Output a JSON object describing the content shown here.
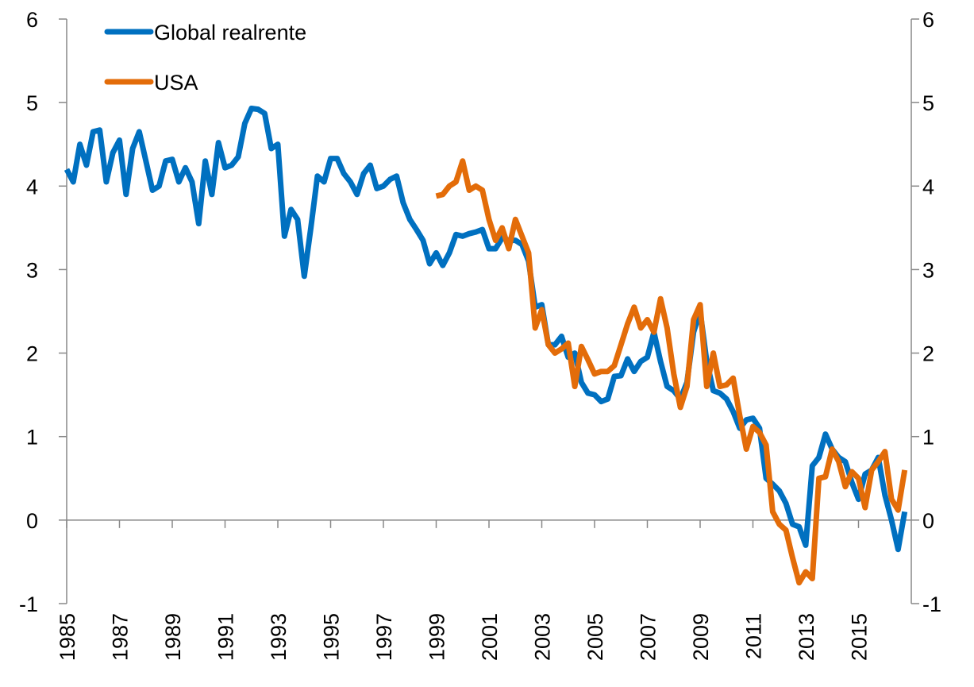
{
  "chart_data": {
    "type": "line",
    "legend": "upper left",
    "ylim": [
      -1,
      6
    ],
    "yticks": [
      -1,
      0,
      1,
      2,
      3,
      4,
      5,
      6
    ],
    "categories": [
      "1985",
      null,
      null,
      null,
      null,
      null,
      null,
      null,
      "1987",
      null,
      null,
      null,
      null,
      null,
      null,
      null,
      "1989",
      null,
      null,
      null,
      null,
      null,
      null,
      null,
      "1991",
      null,
      null,
      null,
      null,
      null,
      null,
      null,
      "1993",
      null,
      null,
      null,
      null,
      null,
      null,
      null,
      "1995",
      null,
      null,
      null,
      null,
      null,
      null,
      null,
      "1997",
      null,
      null,
      null,
      null,
      null,
      null,
      null,
      "1999",
      null,
      null,
      null,
      null,
      null,
      null,
      null,
      "2001",
      null,
      null,
      null,
      null,
      null,
      null,
      null,
      "2003",
      null,
      null,
      null,
      null,
      null,
      null,
      null,
      "2005",
      null,
      null,
      null,
      null,
      null,
      null,
      null,
      "2007",
      null,
      null,
      null,
      null,
      null,
      null,
      null,
      "2009",
      null,
      null,
      null,
      null,
      null,
      null,
      null,
      "2011",
      null,
      null,
      null,
      null,
      null,
      null,
      null,
      "2013",
      null,
      null,
      null,
      null,
      null,
      null,
      null,
      "2015",
      null,
      null,
      null,
      null,
      null,
      null,
      null
    ],
    "series": [
      {
        "name": "Global realrente",
        "color": "#0070c0",
        "values": [
          4.2,
          4.05,
          4.5,
          4.25,
          4.65,
          4.67,
          4.05,
          4.4,
          4.55,
          3.9,
          4.45,
          4.65,
          4.3,
          3.95,
          4.0,
          4.3,
          4.32,
          4.05,
          4.22,
          4.05,
          3.55,
          4.3,
          3.9,
          4.52,
          4.22,
          4.25,
          4.35,
          4.75,
          4.93,
          4.92,
          4.87,
          4.45,
          4.5,
          3.4,
          3.72,
          3.6,
          2.92,
          3.5,
          4.12,
          4.05,
          4.33,
          4.33,
          4.15,
          4.05,
          3.9,
          4.15,
          4.25,
          3.97,
          4.0,
          4.08,
          4.12,
          3.8,
          3.6,
          3.48,
          3.35,
          3.07,
          3.2,
          3.05,
          3.2,
          3.42,
          3.4,
          3.43,
          3.45,
          3.48,
          3.25,
          3.25,
          3.38,
          3.35,
          3.35,
          3.3,
          3.1,
          2.55,
          2.58,
          2.1,
          2.1,
          2.2,
          1.95,
          2.0,
          1.65,
          1.52,
          1.5,
          1.42,
          1.45,
          1.72,
          1.73,
          1.93,
          1.78,
          1.9,
          1.95,
          2.25,
          1.9,
          1.6,
          1.55,
          1.45,
          1.65,
          2.25,
          2.5,
          1.9,
          1.55,
          1.52,
          1.45,
          1.3,
          1.1,
          1.2,
          1.22,
          1.1,
          0.5,
          0.43,
          0.35,
          0.2,
          -0.05,
          -0.08,
          -0.3,
          0.65,
          0.75,
          1.03,
          0.85,
          0.75,
          0.7,
          0.45,
          0.25,
          0.55,
          0.6,
          0.75,
          0.3,
          0.0,
          -0.35,
          0.1
        ]
      },
      {
        "name": "USA",
        "color": "#e36c09",
        "values": [
          null,
          null,
          null,
          null,
          null,
          null,
          null,
          null,
          null,
          null,
          null,
          null,
          null,
          null,
          null,
          null,
          null,
          null,
          null,
          null,
          null,
          null,
          null,
          null,
          null,
          null,
          null,
          null,
          null,
          null,
          null,
          null,
          null,
          null,
          null,
          null,
          null,
          null,
          null,
          null,
          null,
          null,
          null,
          null,
          null,
          null,
          null,
          null,
          null,
          null,
          null,
          null,
          null,
          null,
          null,
          null,
          3.88,
          3.9,
          4.0,
          4.05,
          4.3,
          3.95,
          4.0,
          3.95,
          3.6,
          3.35,
          3.5,
          3.25,
          3.6,
          3.4,
          3.2,
          2.3,
          2.52,
          2.1,
          2.0,
          2.05,
          2.12,
          1.6,
          2.08,
          1.92,
          1.75,
          1.78,
          1.78,
          1.85,
          2.1,
          2.35,
          2.55,
          2.3,
          2.4,
          2.25,
          2.65,
          2.3,
          1.75,
          1.35,
          1.6,
          2.4,
          2.58,
          1.6,
          2.0,
          1.6,
          1.62,
          1.7,
          1.25,
          0.85,
          1.12,
          1.05,
          0.9,
          0.1,
          -0.05,
          -0.12,
          -0.45,
          -0.75,
          -0.62,
          -0.7,
          0.5,
          0.52,
          0.85,
          0.7,
          0.4,
          0.58,
          0.5,
          0.15,
          0.6,
          0.7,
          0.82,
          0.25,
          0.12,
          0.6
        ]
      }
    ]
  }
}
